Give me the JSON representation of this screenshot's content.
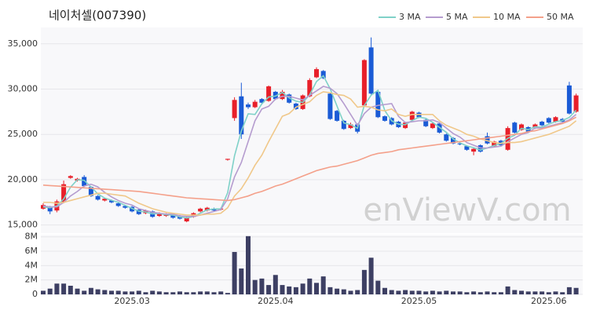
{
  "chart_data": [
    {
      "type": "candlestick",
      "title": "네이처셀(007390)",
      "watermark": "enViewV.com",
      "up_color": "#e8202a",
      "down_color": "#1a5bd6",
      "grid": true,
      "legend": "top-right",
      "ylim": [
        14100,
        36800
      ],
      "yticks": [
        {
          "value": 15000,
          "label": "15,000"
        },
        {
          "value": 20000,
          "label": "20,000"
        },
        {
          "value": 25000,
          "label": "25,000"
        },
        {
          "value": 30000,
          "label": "30,000"
        },
        {
          "value": 35000,
          "label": "35,000"
        }
      ],
      "open": [
        16800,
        17000,
        16600,
        17500,
        20200,
        19900,
        20300,
        19200,
        18200,
        17700,
        17700,
        17400,
        17100,
        17000,
        16700,
        16300,
        16500,
        16000,
        16000,
        16100,
        16000,
        15400,
        15900,
        16500,
        16600,
        16800,
        16700,
        22200,
        26800,
        29200,
        28300,
        28000,
        28900,
        28700,
        29700,
        28900,
        29400,
        28400,
        27800,
        29200,
        31300,
        32000,
        29500,
        27600,
        26500,
        25700,
        26100,
        28200,
        34600,
        29700,
        27000,
        26800,
        26400,
        25700,
        26600,
        27400,
        26600,
        25700,
        26200,
        25000,
        24600,
        24000,
        23700,
        23100,
        23800,
        24800,
        23700,
        24300,
        23300,
        26300,
        25500,
        25800,
        25700,
        26400,
        26800,
        26400,
        26700,
        30400,
        27500
      ],
      "high": [
        17400,
        17100,
        17800,
        19900,
        20500,
        20200,
        20500,
        19300,
        18300,
        18000,
        17800,
        17500,
        17200,
        17100,
        16800,
        16700,
        16600,
        16400,
        16300,
        16200,
        16100,
        15900,
        16400,
        16900,
        17000,
        16900,
        16900,
        22300,
        29100,
        30700,
        28500,
        28800,
        29000,
        30400,
        29800,
        29900,
        29500,
        28500,
        29400,
        31200,
        32400,
        32100,
        29600,
        27700,
        26600,
        26300,
        26200,
        33300,
        35700,
        29800,
        27100,
        26900,
        26500,
        26400,
        27600,
        27500,
        26700,
        26300,
        26300,
        25100,
        24700,
        24100,
        23800,
        23500,
        23900,
        25200,
        24300,
        24400,
        25900,
        26400,
        26200,
        25900,
        26200,
        26500,
        26900,
        27000,
        26800,
        30800,
        29500
      ],
      "low": [
        16700,
        16200,
        16400,
        17400,
        20100,
        19800,
        19200,
        18100,
        17700,
        17600,
        17400,
        17000,
        16800,
        16400,
        16100,
        16200,
        15800,
        15900,
        15900,
        15700,
        15600,
        15300,
        15800,
        16400,
        16500,
        16500,
        16600,
        22100,
        26500,
        24500,
        27800,
        27900,
        28400,
        28600,
        28800,
        28800,
        28400,
        27700,
        27700,
        29100,
        31200,
        31100,
        26600,
        26400,
        25500,
        25600,
        25100,
        28100,
        29400,
        26800,
        26400,
        26000,
        25700,
        25600,
        26500,
        26800,
        25800,
        25600,
        25100,
        24200,
        23900,
        23800,
        23200,
        22700,
        23000,
        23900,
        23600,
        23700,
        23200,
        25100,
        25400,
        25200,
        25600,
        25900,
        26200,
        26300,
        26300,
        27200,
        27400
      ],
      "close": [
        17200,
        16500,
        17600,
        19500,
        20400,
        20100,
        19300,
        18200,
        17800,
        17900,
        17500,
        17100,
        16900,
        16500,
        16200,
        16600,
        15900,
        16300,
        16200,
        15800,
        15700,
        15800,
        16300,
        16800,
        16900,
        16600,
        16800,
        22300,
        28800,
        25000,
        28000,
        28600,
        28500,
        30300,
        28900,
        29700,
        28500,
        27800,
        29300,
        31000,
        32200,
        31200,
        26700,
        26500,
        25600,
        26100,
        25300,
        33200,
        29500,
        26900,
        26500,
        26100,
        25800,
        26300,
        27500,
        26900,
        25900,
        26200,
        25200,
        24300,
        24000,
        23900,
        23300,
        23400,
        23100,
        24000,
        24200,
        23800,
        25700,
        25200,
        26100,
        25300,
        26100,
        26000,
        26300,
        26900,
        26400,
        27300,
        29300
      ],
      "series": [
        {
          "name": "3 MA",
          "color": "#7fd1c8",
          "values": [
            17000,
            16900,
            17100,
            17870,
            19170,
            20000,
            19930,
            19200,
            18430,
            17970,
            17730,
            17500,
            17170,
            16830,
            16530,
            16430,
            16230,
            16270,
            16130,
            16100,
            15900,
            15770,
            15930,
            16300,
            16670,
            16770,
            16770,
            18570,
            22630,
            25370,
            27270,
            27200,
            28370,
            29130,
            29230,
            29630,
            29030,
            28670,
            28530,
            29370,
            30830,
            31470,
            30030,
            28130,
            26270,
            26070,
            25670,
            28200,
            29330,
            29870,
            27630,
            26500,
            26130,
            26070,
            26530,
            26900,
            26770,
            26330,
            25770,
            25230,
            24500,
            24070,
            23730,
            23530,
            23270,
            23500,
            23770,
            24000,
            24570,
            24900,
            25670,
            25530,
            25830,
            25800,
            26130,
            26400,
            26530,
            26870,
            27670
          ]
        },
        {
          "name": "5 MA",
          "color": "#b59ccf",
          "values": [
            17100,
            17000,
            17000,
            17500,
            18200,
            18700,
            19300,
            19500,
            19200,
            18600,
            18100,
            17700,
            17400,
            17200,
            16800,
            16600,
            16400,
            16300,
            16200,
            16200,
            16000,
            15950,
            15950,
            16100,
            16300,
            16500,
            16700,
            17900,
            20300,
            21900,
            24200,
            26500,
            27800,
            28100,
            28900,
            29200,
            29200,
            29000,
            28800,
            29300,
            29800,
            30300,
            30100,
            29500,
            28400,
            27200,
            26000,
            27300,
            28000,
            28200,
            28300,
            28400,
            27000,
            26300,
            26400,
            26500,
            26500,
            26600,
            26300,
            25700,
            25100,
            24700,
            24100,
            23800,
            23500,
            23500,
            23600,
            23700,
            24200,
            24600,
            25000,
            25200,
            25700,
            25700,
            25900,
            26100,
            26300,
            26600,
            27200
          ]
        },
        {
          "name": "10 MA",
          "color": "#f0c88a",
          "values": [
            17500,
            17500,
            17400,
            17500,
            17700,
            17900,
            18100,
            18300,
            18500,
            18500,
            18400,
            18300,
            18200,
            17800,
            17400,
            17100,
            16800,
            16600,
            16400,
            16300,
            16200,
            16100,
            16100,
            16100,
            16200,
            16200,
            16300,
            16900,
            18200,
            19000,
            20200,
            21600,
            22700,
            24200,
            25600,
            27000,
            27300,
            28000,
            28300,
            28600,
            29300,
            29700,
            29600,
            29400,
            29300,
            28900,
            28000,
            28100,
            28000,
            27700,
            27600,
            27800,
            27200,
            27000,
            27200,
            27200,
            27200,
            27200,
            26500,
            26000,
            25700,
            25400,
            25000,
            24800,
            24500,
            24300,
            24100,
            24000,
            24100,
            24100,
            24200,
            24400,
            24600,
            24800,
            25000,
            25300,
            25600,
            25900,
            26500
          ]
        },
        {
          "name": "50 MA",
          "color": "#f4a08a",
          "values": [
            19400,
            19350,
            19300,
            19250,
            19200,
            19150,
            19100,
            19050,
            19000,
            18950,
            18900,
            18850,
            18800,
            18750,
            18700,
            18600,
            18500,
            18400,
            18300,
            18200,
            18100,
            18000,
            17950,
            17900,
            17850,
            17800,
            17750,
            17700,
            17800,
            18000,
            18200,
            18500,
            18700,
            19000,
            19300,
            19500,
            19800,
            20100,
            20400,
            20700,
            21000,
            21200,
            21400,
            21500,
            21700,
            21900,
            22100,
            22400,
            22700,
            22900,
            23000,
            23100,
            23300,
            23400,
            23500,
            23600,
            23700,
            23800,
            23900,
            24000,
            24100,
            24200,
            24300,
            24400,
            24500,
            24600,
            24700,
            24800,
            24900,
            25000,
            25100,
            25300,
            25400,
            25600,
            25800,
            26000,
            26200,
            26500,
            26900
          ]
        }
      ]
    },
    {
      "type": "bar",
      "color": "#3d3f63",
      "ylim": [
        0,
        8300000
      ],
      "yticks": [
        0,
        {
          "value": 2000000,
          "label": "2M"
        },
        {
          "value": 4000000,
          "label": "4M"
        },
        {
          "value": 6000000,
          "label": "6M"
        },
        {
          "value": 8000000,
          "label": "8M"
        }
      ],
      "categories": [
        null,
        null,
        null,
        null,
        null,
        null,
        null,
        null,
        null,
        null,
        null,
        null,
        null,
        "2025.03",
        null,
        null,
        null,
        null,
        null,
        null,
        null,
        null,
        null,
        null,
        null,
        null,
        null,
        null,
        null,
        null,
        null,
        null,
        null,
        null,
        "2025.04",
        null,
        null,
        null,
        null,
        null,
        null,
        null,
        null,
        null,
        null,
        null,
        null,
        null,
        null,
        null,
        null,
        null,
        null,
        null,
        null,
        "2025.05",
        null,
        null,
        null,
        null,
        null,
        null,
        null,
        null,
        null,
        null,
        null,
        null,
        null,
        null,
        null,
        null,
        null,
        null,
        "2025.06",
        null,
        null,
        null,
        null
      ],
      "values": [
        500000,
        800000,
        1500000,
        1500000,
        1200000,
        800000,
        500000,
        900000,
        700000,
        600000,
        500000,
        500000,
        400000,
        400000,
        500000,
        300000,
        500000,
        400000,
        300000,
        300000,
        400000,
        300000,
        300000,
        400000,
        400000,
        300000,
        400000,
        200000,
        5900000,
        3600000,
        8100000,
        2000000,
        2200000,
        1300000,
        2700000,
        1300000,
        1100000,
        1000000,
        1500000,
        2200000,
        1600000,
        2500000,
        1000000,
        800000,
        700000,
        500000,
        600000,
        3400000,
        5100000,
        1900000,
        900000,
        600000,
        500000,
        600000,
        500000,
        500000,
        400000,
        500000,
        400000,
        500000,
        400000,
        400000,
        300000,
        400000,
        300000,
        400000,
        300000,
        300000,
        1100000,
        600000,
        500000,
        400000,
        400000,
        400000,
        300000,
        400000,
        300000,
        1000000,
        900000
      ]
    }
  ]
}
